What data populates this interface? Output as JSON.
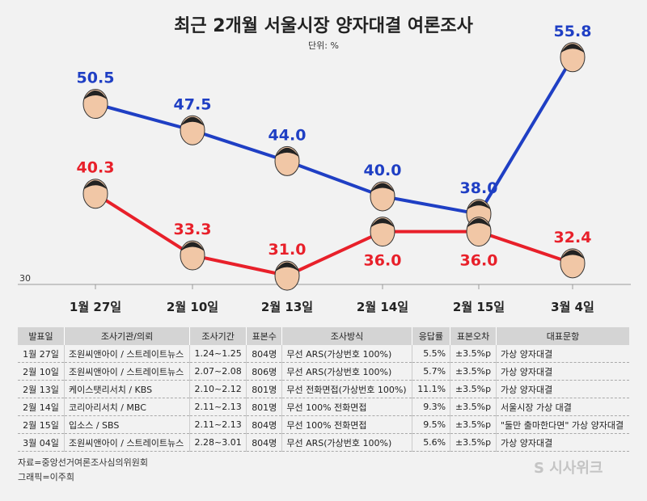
{
  "title": "최근 2개월 서울시장 양자대결 여론조사",
  "unit": "단위: %",
  "chart_data": {
    "type": "line",
    "title": "최근 2개월 서울시장 양자대결 여론조사",
    "categories": [
      "1월 27일",
      "2월 10일",
      "2월 13일",
      "2월 14일",
      "2월 15일",
      "3월 4일"
    ],
    "y_baseline_label": "30",
    "ylim": [
      30,
      57
    ],
    "grid": false,
    "series": [
      {
        "color": "#1f3fc4",
        "values": [
          50.5,
          47.5,
          44.0,
          40.0,
          38.0,
          55.8
        ],
        "labels": [
          "50.5",
          "47.5",
          "44.0",
          "40.0",
          "38.0",
          "55.8"
        ]
      },
      {
        "color": "#e8202a",
        "values": [
          40.3,
          33.3,
          31.0,
          36.0,
          36.0,
          32.4
        ],
        "labels": [
          "40.3",
          "33.3",
          "31.0",
          "36.0",
          "36.0",
          "32.4"
        ]
      }
    ]
  },
  "table": {
    "headers": [
      "발표일",
      "조사기관/의뢰",
      "조사기간",
      "표본수",
      "조사방식",
      "응답률",
      "표본오차",
      "대표문항"
    ],
    "rows": [
      [
        "1월 27일",
        "조원씨앤아이 / 스트레이트뉴스",
        "1.24~1.25",
        "804명",
        "무선 ARS(가상번호 100%)",
        "5.5%",
        "±3.5%p",
        "가상 양자대결"
      ],
      [
        "2월 10일",
        "조원씨앤아이 / 스트레이트뉴스",
        "2.07~2.08",
        "806명",
        "무선 ARS(가상번호 100%)",
        "5.7%",
        "±3.5%p",
        "가상 양자대결"
      ],
      [
        "2월 13일",
        "케이스탯리서치 / KBS",
        "2.10~2.12",
        "801명",
        "무선 전화면접(가상번호 100%)",
        "11.1%",
        "±3.5%p",
        "가상 양자대결"
      ],
      [
        "2월 14일",
        "코리아리서치 / MBC",
        "2.11~2.13",
        "801명",
        "무선 100% 전화면접",
        "9.3%",
        "±3.5%p",
        "서울시장 가상 대결"
      ],
      [
        "2월 15일",
        "입소스 / SBS",
        "2.11~2.13",
        "804명",
        "무선 100% 전화면접",
        "9.5%",
        "±3.5%p",
        "\"둘만 출마한다면\" 가상 양자대결"
      ],
      [
        "3월 04일",
        "조원씨앤아이 / 스트레이트뉴스",
        "2.28~3.01",
        "804명",
        "무선 ARS(가상번호 100%)",
        "5.6%",
        "±3.5%p",
        "가상 양자대결"
      ]
    ]
  },
  "source": "자료=중앙선거여론조사심의위원회",
  "credit": "그래픽=이주희",
  "logo": "시사위크"
}
